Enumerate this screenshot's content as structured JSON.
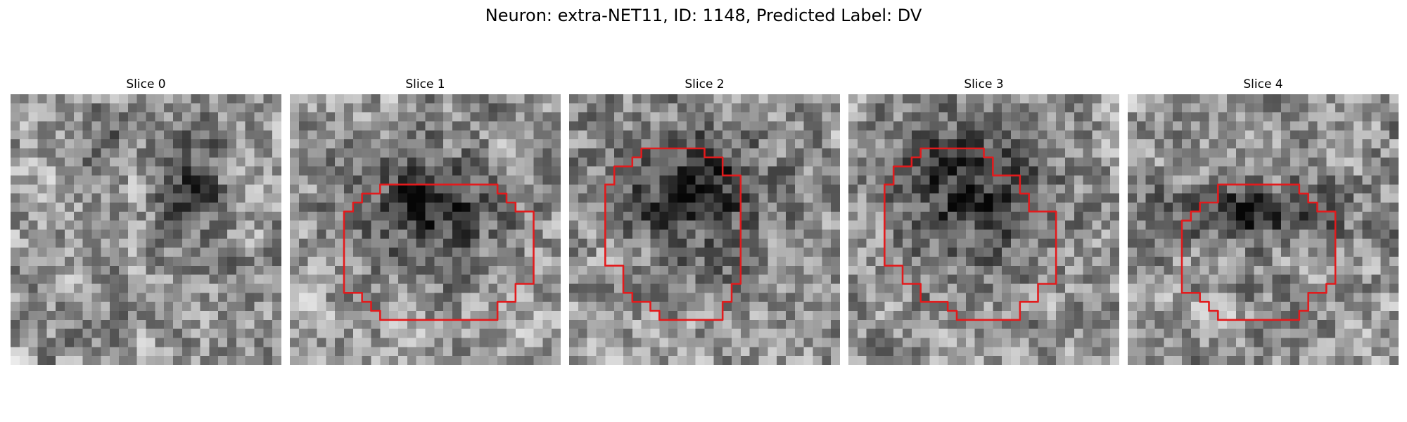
{
  "figure": {
    "title": "Neuron: extra-NET11, ID: 1148, Predicted Label: DV"
  },
  "panels": [
    {
      "label": "Slice 0"
    },
    {
      "label": "Slice 1"
    },
    {
      "label": "Slice 2"
    },
    {
      "label": "Slice 3"
    },
    {
      "label": "Slice 4"
    }
  ],
  "colors": {
    "outline": "#e31a1c",
    "background": "#ffffff",
    "text": "#000000"
  }
}
